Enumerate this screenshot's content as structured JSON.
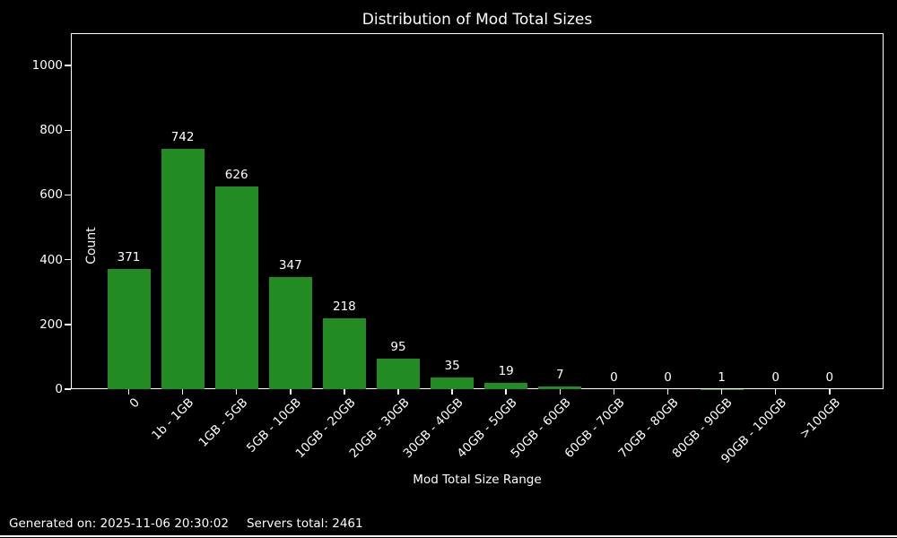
{
  "title": "Distribution of Mod Total Sizes",
  "footer": {
    "generated": "Generated on: 2025-11-06 20:30:02",
    "servers_total": "Servers total: 2461"
  },
  "chart_data": {
    "type": "bar",
    "title": "Distribution of Mod Total Sizes",
    "xlabel": "Mod Total Size Range",
    "ylabel": "Count",
    "categories": [
      "0",
      "1b - 1GB",
      "1GB - 5GB",
      "5GB - 10GB",
      "10GB - 20GB",
      "20GB - 30GB",
      "30GB - 40GB",
      "40GB - 50GB",
      "50GB - 60GB",
      "60GB - 70GB",
      "70GB - 80GB",
      "80GB - 90GB",
      "90GB - 100GB",
      ">100GB"
    ],
    "values": [
      371,
      742,
      626,
      347,
      218,
      95,
      35,
      19,
      7,
      0,
      0,
      1,
      0,
      0
    ],
    "value_labels": [
      "371",
      "742",
      "626",
      "347",
      "218",
      "95",
      "35",
      "19",
      "7",
      "0",
      "0",
      "1",
      "0",
      "0"
    ],
    "ylim": [
      0,
      1100
    ],
    "yticks": [
      0,
      200,
      400,
      600,
      800,
      1000
    ],
    "xtick_rotation_deg": 45,
    "bar_color": "#228B22",
    "background_color": "#000000",
    "text_color": "#ffffff",
    "grid": false,
    "legend": false
  }
}
